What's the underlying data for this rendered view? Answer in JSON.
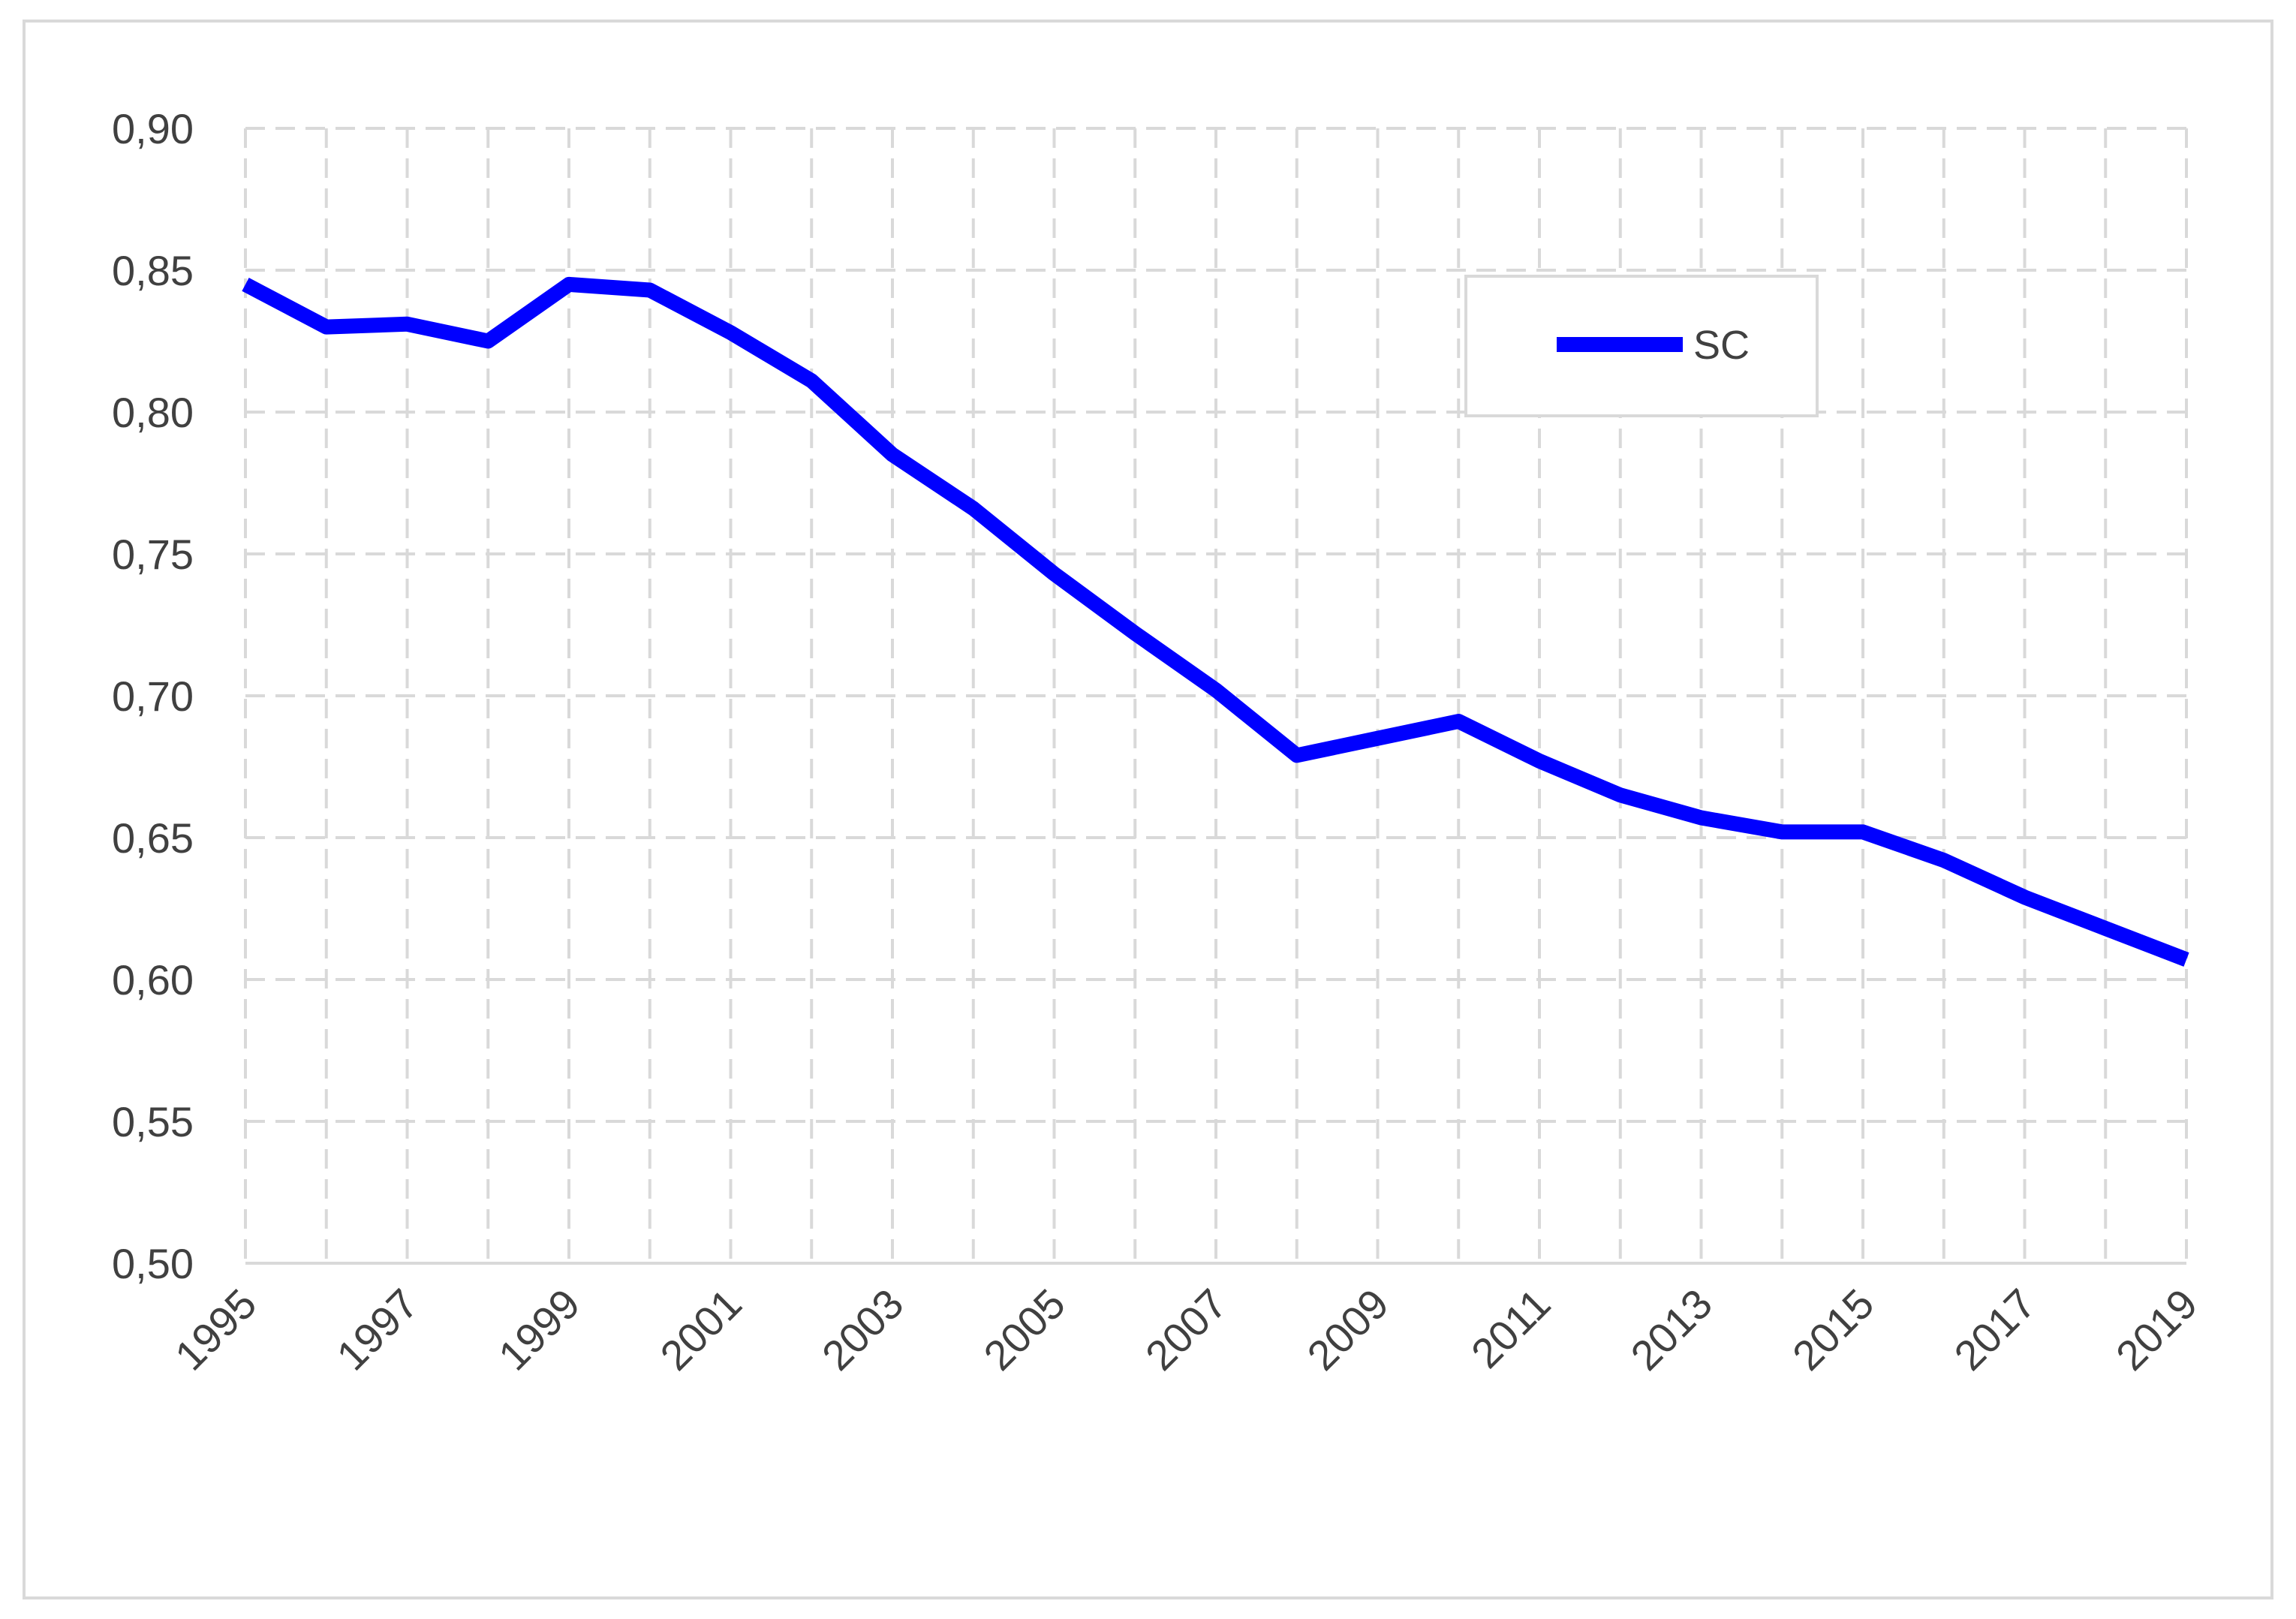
{
  "chart_data": {
    "type": "line",
    "title": "",
    "xlabel": "",
    "ylabel": "",
    "x": [
      1995,
      1996,
      1997,
      1998,
      1999,
      2000,
      2001,
      2002,
      2003,
      2004,
      2005,
      2006,
      2007,
      2008,
      2009,
      2010,
      2011,
      2012,
      2013,
      2014,
      2015,
      2016,
      2017,
      2018,
      2019
    ],
    "x_tick_labels": [
      "1995",
      "1997",
      "1999",
      "2001",
      "2003",
      "2005",
      "2007",
      "2009",
      "2011",
      "2013",
      "2015",
      "2017",
      "2019"
    ],
    "y_tick_labels": [
      "0,50",
      "0,55",
      "0,60",
      "0,65",
      "0,70",
      "0,75",
      "0,80",
      "0,85",
      "0,90"
    ],
    "ylim": [
      0.5,
      0.9
    ],
    "grid": true,
    "legend_position": "top-right",
    "series": [
      {
        "name": "SC",
        "color": "#0000ff",
        "values": [
          0.845,
          0.83,
          0.831,
          0.825,
          0.845,
          0.843,
          0.828,
          0.811,
          0.785,
          0.766,
          0.743,
          0.722,
          0.702,
          0.679,
          0.685,
          0.691,
          0.677,
          0.665,
          0.657,
          0.652,
          0.652,
          0.642,
          0.629,
          0.618,
          0.607
        ]
      }
    ]
  }
}
